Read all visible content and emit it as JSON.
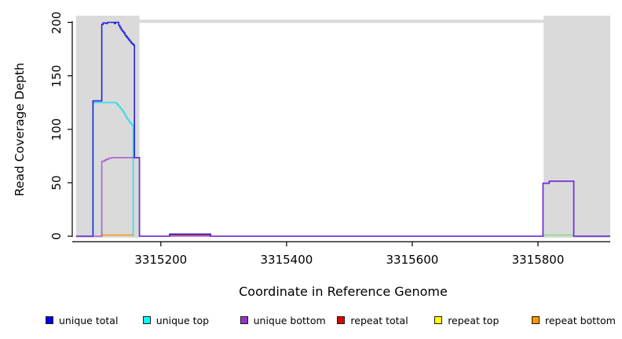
{
  "chart_data": {
    "type": "step-line",
    "title": "",
    "xlabel": "Coordinate in Reference Genome",
    "ylabel": "Read Coverage Depth",
    "xlim": [
      3315065,
      3315915
    ],
    "ylim": [
      0,
      200
    ],
    "x_ticks": [
      3315200,
      3315400,
      3315600,
      3315800
    ],
    "y_ticks": [
      0,
      50,
      100,
      150,
      200
    ],
    "grid": false,
    "legend_position": "bottom",
    "shaded_regions": [
      {
        "name": "left-gray-band",
        "x1": 3315065,
        "x2": 3315166,
        "color": "#dadada"
      },
      {
        "name": "right-gray-band",
        "x1": 3315809,
        "x2": 3315915,
        "color": "#dadada"
      }
    ],
    "top_strip": {
      "x1": 3315065,
      "x2": 3315915,
      "v1": 199.5,
      "v2": 202.5,
      "color": "#dadada"
    },
    "series": [
      {
        "name": "repeat total",
        "color": "#e03030",
        "opacity": 1,
        "points": [
          [
            3315214,
            1
          ],
          [
            3315279,
            0
          ]
        ]
      },
      {
        "name": "repeat top",
        "color": "#f5f032",
        "opacity": 1,
        "points": []
      },
      {
        "name": "repeat bottom",
        "color": "#ff9814",
        "opacity": 1,
        "points": [
          [
            3315107,
            1
          ],
          [
            3315156,
            0
          ]
        ]
      },
      {
        "name": "green baseline segment",
        "color": "#8cd98c",
        "opacity": 1,
        "points": [
          [
            3315810,
            1
          ],
          [
            3315856,
            0
          ]
        ]
      },
      {
        "name": "unique top",
        "color": "#35dde6",
        "opacity": 1,
        "points": [
          [
            3315092,
            125
          ],
          [
            3315129,
            124
          ],
          [
            3315131,
            123
          ],
          [
            3315133,
            121.5
          ],
          [
            3315135,
            120
          ],
          [
            3315137,
            118.5
          ],
          [
            3315139,
            117
          ],
          [
            3315141,
            115
          ],
          [
            3315143,
            113
          ],
          [
            3315145,
            111
          ],
          [
            3315147,
            109
          ],
          [
            3315149,
            107.5
          ],
          [
            3315151,
            106
          ],
          [
            3315153,
            104.5
          ],
          [
            3315155,
            103.5
          ],
          [
            3315156,
            0
          ]
        ]
      },
      {
        "name": "unique total",
        "color": "#2323e2",
        "opacity": 1,
        "points": [
          [
            3315065,
            0
          ],
          [
            3315092,
            126.5
          ],
          [
            3315106,
            198
          ],
          [
            3315108,
            199.5
          ],
          [
            3315112,
            199
          ],
          [
            3315115,
            200
          ],
          [
            3315126,
            199
          ],
          [
            3315128,
            200
          ],
          [
            3315133,
            197
          ],
          [
            3315135,
            195
          ],
          [
            3315137,
            193
          ],
          [
            3315139,
            191.5
          ],
          [
            3315141,
            190
          ],
          [
            3315143,
            188
          ],
          [
            3315145,
            186.5
          ],
          [
            3315147,
            185
          ],
          [
            3315149,
            183.5
          ],
          [
            3315151,
            182
          ],
          [
            3315153,
            180.5
          ],
          [
            3315155,
            179.5
          ],
          [
            3315157,
            178.5
          ],
          [
            3315158,
            73.5
          ],
          [
            3315166,
            0
          ],
          [
            3315214,
            2
          ],
          [
            3315279,
            0
          ],
          [
            3315808,
            49.5
          ],
          [
            3315818,
            51.5
          ],
          [
            3315857,
            0
          ],
          [
            3315915,
            0
          ]
        ]
      },
      {
        "name": "unique bottom",
        "color": "#9932cc",
        "opacity": 0.72,
        "points": [
          [
            3315065,
            0
          ],
          [
            3315106,
            70
          ],
          [
            3315110,
            71
          ],
          [
            3315113,
            72
          ],
          [
            3315117,
            73
          ],
          [
            3315122,
            73.5
          ],
          [
            3315166,
            0
          ],
          [
            3315808,
            49.5
          ],
          [
            3315818,
            51.5
          ],
          [
            3315857,
            0
          ],
          [
            3315915,
            0
          ]
        ]
      }
    ],
    "legend": {
      "items": [
        {
          "label": "unique total",
          "color": "#0000ee"
        },
        {
          "label": "unique top",
          "color": "#00ffff"
        },
        {
          "label": "unique bottom",
          "color": "#9932cc"
        },
        {
          "label": "repeat total",
          "color": "#dd0000"
        },
        {
          "label": "repeat top",
          "color": "#ffff00"
        },
        {
          "label": "repeat bottom",
          "color": "#ff9800"
        }
      ]
    },
    "axis_color": "#000000"
  }
}
